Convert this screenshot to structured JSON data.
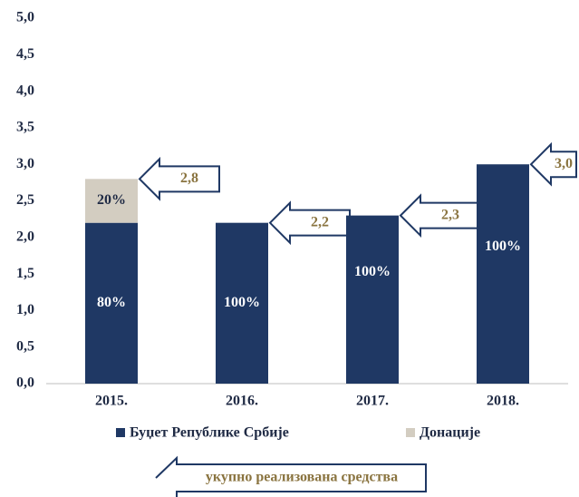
{
  "chart_data": {
    "type": "stacked_bar",
    "categories": [
      "2015.",
      "2016.",
      "2017.",
      "2018."
    ],
    "series": [
      {
        "name": "Буџет Републике Србије",
        "color": "#1f3864",
        "values": [
          2.2,
          2.2,
          2.3,
          3.0
        ],
        "shares": [
          80,
          100,
          100,
          100
        ],
        "share_labels": [
          "80%",
          "100%",
          "100%",
          "100%"
        ]
      },
      {
        "name": "Донације",
        "color": "#d3cdc1",
        "values": [
          0.6,
          0,
          0,
          0
        ],
        "shares": [
          20,
          null,
          null,
          null
        ],
        "share_labels": [
          "20%",
          null,
          null,
          null
        ]
      }
    ],
    "totals": [
      2.8,
      2.2,
      2.3,
      3.0
    ],
    "total_labels": [
      "2,8",
      "2,2",
      "2,3",
      "3,0"
    ],
    "ylim": [
      0,
      5
    ],
    "yticks": [
      {
        "value": 0,
        "label": "0,0"
      },
      {
        "value": 0.5,
        "label": "0,5"
      },
      {
        "value": 1,
        "label": "1,0"
      },
      {
        "value": 1.5,
        "label": "1,5"
      },
      {
        "value": 2,
        "label": "2,0"
      },
      {
        "value": 2.5,
        "label": "2,5"
      },
      {
        "value": 3,
        "label": "3,0"
      },
      {
        "value": 3.5,
        "label": "3,5"
      },
      {
        "value": 4,
        "label": "4,0"
      },
      {
        "value": 4.5,
        "label": "4,5"
      },
      {
        "value": 5,
        "label": "5,0"
      }
    ],
    "grid": false,
    "legend": "bottom",
    "annotation": "укупно реализована средства"
  }
}
